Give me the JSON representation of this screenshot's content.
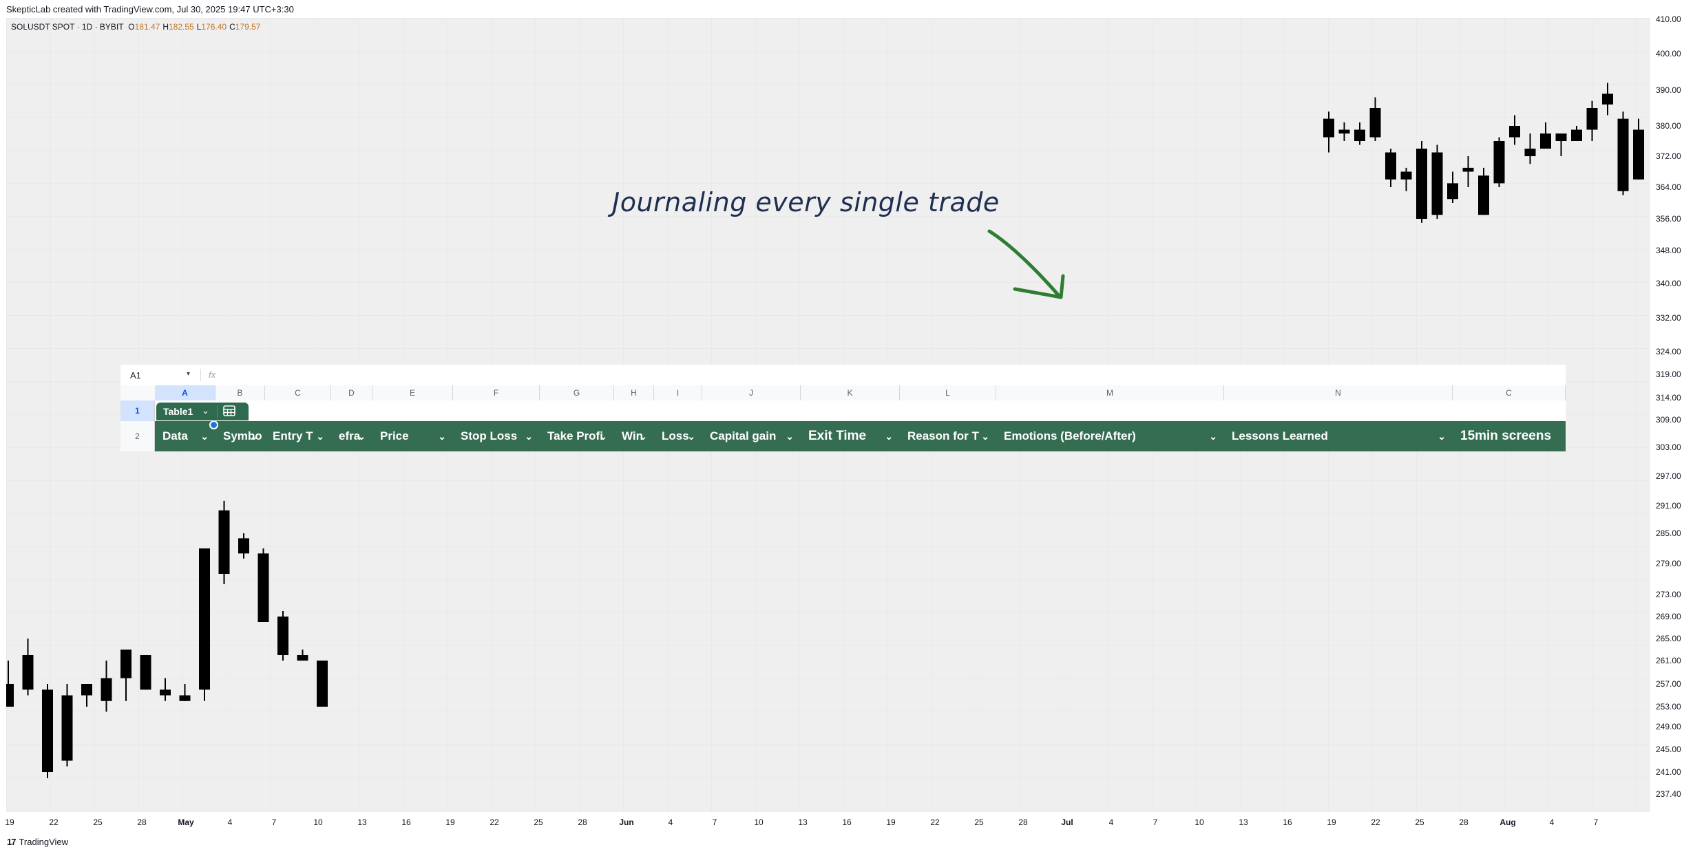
{
  "header": {
    "credit": "SkepticLab created with TradingView.com, Jul 30, 2025 19:47 UTC+3:30"
  },
  "symbol": {
    "name": "SOLUSDT SPOT · 1D · BYBIT",
    "open_label": "O",
    "open": "181.47",
    "high_label": "H",
    "high": "182.55",
    "low_label": "L",
    "low": "176.40",
    "close_label": "C",
    "close": "179.57"
  },
  "annotation": {
    "text": "Journaling every single trade",
    "arrow_color": "#2e7d32"
  },
  "spreadsheet": {
    "name_box": "A1",
    "name_box_arrow": "▾",
    "fx": "fx",
    "columns": [
      "A",
      "B",
      "C",
      "D",
      "E",
      "F",
      "G",
      "H",
      "I",
      "J",
      "K",
      "L",
      "M",
      "N",
      "C"
    ],
    "selected_column": "A",
    "rows": [
      "1",
      "2"
    ],
    "table_chip": {
      "name": "Table1",
      "arrow": "⌄"
    },
    "header_cells": [
      "Data",
      "Symbo",
      "Entry T",
      "efra",
      "Price",
      "Stop Loss",
      "Take Profi",
      "Win",
      "Loss",
      "Capital gain",
      "Exit Time",
      "Reason for T",
      "Emotions (Before/After)",
      "Lessons Learned",
      "15min screens"
    ],
    "chevron": "⌄",
    "header_color": "#356d53"
  },
  "y_axis": {
    "labels": [
      "410.00",
      "400.00",
      "390.00",
      "380.00",
      "372.00",
      "364.00",
      "356.00",
      "348.00",
      "340.00",
      "332.00",
      "324.00",
      "319.00",
      "314.00",
      "309.00",
      "303.00",
      "297.00",
      "291.00",
      "285.00",
      "279.00",
      "273.00",
      "269.00",
      "265.00",
      "261.00",
      "257.00",
      "253.00",
      "249.00",
      "245.00",
      "241.00",
      "237.40"
    ]
  },
  "x_axis": {
    "labels": [
      "19",
      "22",
      "25",
      "28",
      "May",
      "4",
      "7",
      "10",
      "13",
      "16",
      "19",
      "22",
      "25",
      "28",
      "Jun",
      "4",
      "7",
      "10",
      "13",
      "16",
      "19",
      "22",
      "25",
      "28",
      "Jul",
      "4",
      "7",
      "10",
      "13",
      "16",
      "19",
      "22",
      "25",
      "28",
      "Aug",
      "4",
      "7"
    ],
    "major": [
      "May",
      "Jun",
      "Jul",
      "Aug"
    ]
  },
  "footer": {
    "brand": "TradingView",
    "logo": "17"
  },
  "chart_data": {
    "type": "candlestick",
    "symbol": "SOLUSDT",
    "price_range": [
      236,
      412
    ],
    "candle_color": "#000000",
    "candles_early": [
      {
        "o": 257,
        "h": 261,
        "l": 253,
        "c": 253
      },
      {
        "o": 262,
        "h": 265,
        "l": 255,
        "c": 256
      },
      {
        "o": 256,
        "h": 257,
        "l": 240,
        "c": 241
      },
      {
        "o": 255,
        "h": 257,
        "l": 242,
        "c": 243
      },
      {
        "o": 255,
        "h": 257,
        "l": 253,
        "c": 257
      },
      {
        "o": 258,
        "h": 261,
        "l": 252,
        "c": 254
      },
      {
        "o": 258,
        "h": 262,
        "l": 254,
        "c": 263
      },
      {
        "o": 262,
        "h": 262,
        "l": 256,
        "c": 256
      },
      {
        "o": 256,
        "h": 258,
        "l": 254,
        "c": 255
      },
      {
        "o": 255,
        "h": 257,
        "l": 254,
        "c": 254
      },
      {
        "o": 256,
        "h": 280,
        "l": 254,
        "c": 282
      },
      {
        "o": 290,
        "h": 292,
        "l": 275,
        "c": 277
      },
      {
        "o": 284,
        "h": 285,
        "l": 280,
        "c": 281
      },
      {
        "o": 281,
        "h": 282,
        "l": 268,
        "c": 268
      },
      {
        "o": 269,
        "h": 270,
        "l": 261,
        "c": 262
      },
      {
        "o": 262,
        "h": 263,
        "l": 261,
        "c": 261
      },
      {
        "o": 261,
        "h": 261,
        "l": 253,
        "c": 253
      }
    ],
    "candles_late": [
      {
        "o": 382,
        "h": 384,
        "l": 373,
        "c": 377
      },
      {
        "o": 379,
        "h": 381,
        "l": 376,
        "c": 378
      },
      {
        "o": 379,
        "h": 381,
        "l": 375,
        "c": 376
      },
      {
        "o": 377,
        "h": 388,
        "l": 376,
        "c": 385
      },
      {
        "o": 373,
        "h": 374,
        "l": 364,
        "c": 366
      },
      {
        "o": 366,
        "h": 369,
        "l": 363,
        "c": 368
      },
      {
        "o": 374,
        "h": 376,
        "l": 355,
        "c": 356
      },
      {
        "o": 373,
        "h": 375,
        "l": 356,
        "c": 357
      },
      {
        "o": 365,
        "h": 368,
        "l": 360,
        "c": 361
      },
      {
        "o": 369,
        "h": 372,
        "l": 364,
        "c": 368
      },
      {
        "o": 367,
        "h": 369,
        "l": 357,
        "c": 357
      },
      {
        "o": 365,
        "h": 377,
        "l": 364,
        "c": 376
      },
      {
        "o": 377,
        "h": 383,
        "l": 375,
        "c": 380
      },
      {
        "o": 374,
        "h": 378,
        "l": 370,
        "c": 372
      },
      {
        "o": 374,
        "h": 381,
        "l": 374,
        "c": 378
      },
      {
        "o": 376,
        "h": 378,
        "l": 372,
        "c": 378
      },
      {
        "o": 376,
        "h": 380,
        "l": 376,
        "c": 379
      },
      {
        "o": 379,
        "h": 387,
        "l": 376,
        "c": 385
      },
      {
        "o": 386,
        "h": 392,
        "l": 383,
        "c": 389
      },
      {
        "o": 382,
        "h": 384,
        "l": 362,
        "c": 363
      },
      {
        "o": 366,
        "h": 382,
        "l": 366,
        "c": 379
      }
    ]
  }
}
